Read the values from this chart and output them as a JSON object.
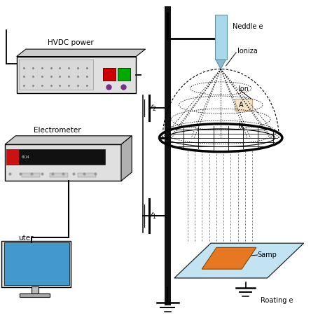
{
  "bg_color": "#ffffff",
  "labels": {
    "hvdc": "HVDC power",
    "electrometer": "Electrometer",
    "computer": "uter",
    "needle": "Neddle e",
    "ioniza": "Ioniza",
    "ion": "Ion",
    "amp": "A",
    "mesh": "N",
    "sample": "Samp",
    "rotating": "Roating e"
  },
  "colors": {
    "needle_blue": "#a8d8ea",
    "sample_plate": "#b8dff0",
    "sample_orange": "#e87722",
    "amp_box_fill": "#f5e6c8",
    "amp_box_edge": "#ccaa88",
    "red_button": "#cc0000",
    "green_button": "#00aa00",
    "purple_knob": "#7b2d8b",
    "monitor_screen": "#4499cc",
    "dashed_line": "#666666",
    "wire": "#000000",
    "pole": "#111111",
    "device_body": "#e0e0e0",
    "device_top": "#cccccc",
    "device_right": "#b0b0b0"
  }
}
